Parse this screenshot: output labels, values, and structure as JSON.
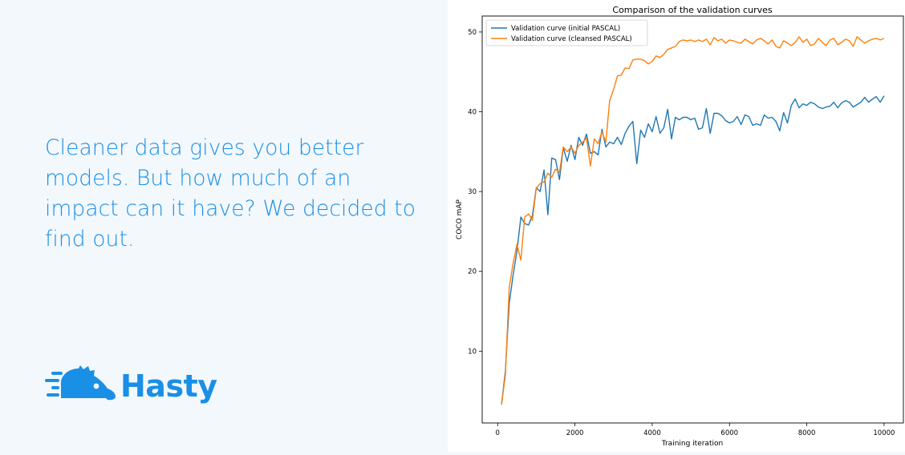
{
  "headline": "Cleaner data gives you better models. But how much of an impact can it have? We decided to find out.",
  "brand": {
    "name": "Hasty",
    "color": "#1a8fe6"
  },
  "chart_data": {
    "type": "line",
    "title": "Comparison of the validation curves",
    "xlabel": "Training iteration",
    "ylabel": "COCO mAP",
    "xlim": [
      -400,
      10500
    ],
    "ylim": [
      1.0,
      52.0
    ],
    "xticks": [
      0,
      2000,
      4000,
      6000,
      8000,
      10000
    ],
    "yticks": [
      10,
      20,
      30,
      40,
      50
    ],
    "grid": false,
    "legend_position": "top-left",
    "x": [
      100,
      200,
      300,
      400,
      500,
      600,
      700,
      800,
      900,
      1000,
      1100,
      1200,
      1300,
      1400,
      1500,
      1600,
      1700,
      1800,
      1900,
      2000,
      2100,
      2200,
      2300,
      2400,
      2500,
      2600,
      2700,
      2800,
      2900,
      3000,
      3100,
      3200,
      3300,
      3400,
      3500,
      3600,
      3700,
      3800,
      3900,
      4000,
      4100,
      4200,
      4300,
      4400,
      4500,
      4600,
      4700,
      4800,
      4900,
      5000,
      5100,
      5200,
      5300,
      5400,
      5500,
      5600,
      5700,
      5800,
      5900,
      6000,
      6100,
      6200,
      6300,
      6400,
      6500,
      6600,
      6700,
      6800,
      6900,
      7000,
      7100,
      7200,
      7300,
      7400,
      7500,
      7600,
      7700,
      7800,
      7900,
      8000,
      8100,
      8200,
      8300,
      8400,
      8500,
      8600,
      8700,
      8800,
      8900,
      9000,
      9100,
      9200,
      9300,
      9400,
      9500,
      9600,
      9700,
      9800,
      9900,
      10000
    ],
    "series": [
      {
        "name": "Validation curve (initial PASCAL)",
        "color": "#1f77b4",
        "values": [
          3.3,
          7.5,
          16.0,
          19.5,
          22.5,
          26.8,
          26.0,
          25.8,
          27.0,
          30.5,
          30.0,
          32.7,
          27.1,
          34.2,
          34.0,
          31.5,
          35.5,
          33.8,
          35.8,
          34.0,
          36.8,
          35.8,
          37.2,
          34.8,
          35.0,
          34.6,
          37.8,
          35.6,
          36.2,
          36.0,
          36.8,
          35.9,
          37.3,
          38.2,
          38.8,
          33.5,
          37.7,
          36.8,
          38.5,
          37.5,
          39.4,
          37.3,
          38.0,
          40.3,
          36.6,
          39.3,
          39.0,
          39.3,
          39.3,
          39.0,
          39.2,
          37.8,
          38.0,
          40.4,
          37.3,
          39.8,
          39.8,
          39.5,
          38.9,
          38.6,
          38.8,
          39.4,
          38.4,
          39.6,
          39.4,
          38.3,
          38.5,
          38.3,
          39.6,
          39.2,
          39.3,
          38.8,
          37.6,
          39.9,
          38.6,
          40.8,
          41.6,
          40.5,
          41.0,
          40.8,
          41.2,
          41.0,
          40.6,
          40.4,
          40.6,
          40.7,
          41.2,
          40.5,
          41.1,
          41.4,
          41.2,
          40.6,
          40.9,
          41.2,
          41.8,
          41.2,
          41.6,
          41.9,
          41.2,
          42.0
        ]
      },
      {
        "name": "Validation curve (cleansed PASCAL)",
        "color": "#ff7f0e",
        "values": [
          3.3,
          7.0,
          18.0,
          21.0,
          23.4,
          21.4,
          26.8,
          27.2,
          26.4,
          30.4,
          31.0,
          31.2,
          32.3,
          31.8,
          32.8,
          32.4,
          35.6,
          35.0,
          35.6,
          34.8,
          35.8,
          36.2,
          36.7,
          33.2,
          36.6,
          36.0,
          37.5,
          36.2,
          41.4,
          42.8,
          44.5,
          44.6,
          45.5,
          45.4,
          46.5,
          46.6,
          46.6,
          46.4,
          46.0,
          46.3,
          47.0,
          46.8,
          47.2,
          47.8,
          48.0,
          48.2,
          48.8,
          49.0,
          48.9,
          49.0,
          48.8,
          49.0,
          48.8,
          49.1,
          48.4,
          49.3,
          48.9,
          49.1,
          48.6,
          49.0,
          48.9,
          48.7,
          48.6,
          49.1,
          48.8,
          48.5,
          49.0,
          49.2,
          48.9,
          48.5,
          49.0,
          48.2,
          48.0,
          48.9,
          48.6,
          48.3,
          48.7,
          49.4,
          48.7,
          49.1,
          48.3,
          48.5,
          49.2,
          48.7,
          48.3,
          49.0,
          49.2,
          48.4,
          48.7,
          49.1,
          48.9,
          48.2,
          49.4,
          49.0,
          48.6,
          48.9,
          49.1,
          49.2,
          49.0,
          49.2
        ]
      }
    ]
  }
}
